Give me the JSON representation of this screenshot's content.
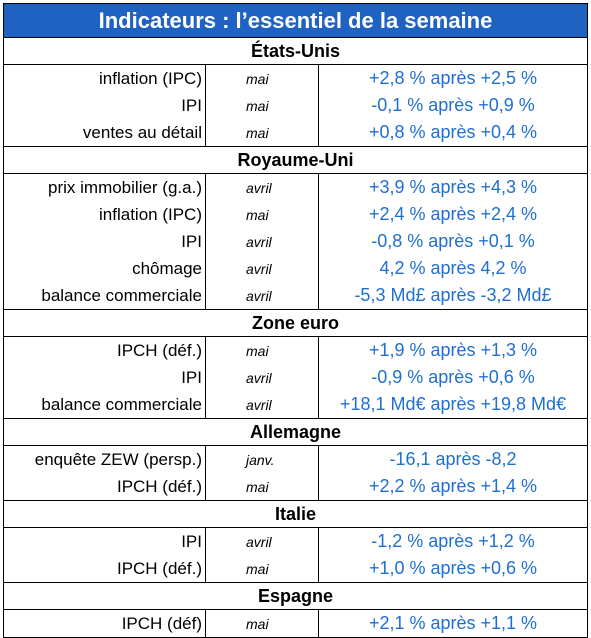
{
  "title": "Indicateurs : l’essentiel de la semaine",
  "colors": {
    "title_background": "#1f62c2",
    "title_text": "#ffffff",
    "value_text": "#1f6fd1",
    "border": "#000000"
  },
  "sections": [
    {
      "country": "États-Unis",
      "rows": [
        {
          "indicator": "inflation (IPC)",
          "period": "mai",
          "value": "+2,8 % après +2,5 %"
        },
        {
          "indicator": "IPI",
          "period": "mai",
          "value": "-0,1 % après +0,9 %"
        },
        {
          "indicator": "ventes au détail",
          "period": "mai",
          "value": "+0,8 % après +0,4 %"
        }
      ]
    },
    {
      "country": "Royaume-Uni",
      "rows": [
        {
          "indicator": "prix immobilier (g.a.)",
          "period": "avril",
          "value": "+3,9 % après +4,3 %"
        },
        {
          "indicator": "inflation (IPC)",
          "period": "mai",
          "value": "+2,4 % après +2,4 %"
        },
        {
          "indicator": "IPI",
          "period": "avril",
          "value": "-0,8 % après +0,1 %"
        },
        {
          "indicator": "chômage",
          "period": "avril",
          "value": "4,2 % après 4,2 %"
        },
        {
          "indicator": "balance commerciale",
          "period": "avril",
          "value": "-5,3 Md£ après -3,2 Md£"
        }
      ]
    },
    {
      "country": "Zone euro",
      "rows": [
        {
          "indicator": "IPCH (déf.)",
          "period": "mai",
          "value": "+1,9 % après +1,3 %"
        },
        {
          "indicator": "IPI",
          "period": "avril",
          "value": "-0,9 % après +0,6 %"
        },
        {
          "indicator": "balance commerciale",
          "period": "avril",
          "value": "+18,1 Md€ après +19,8 Md€"
        }
      ]
    },
    {
      "country": "Allemagne",
      "rows": [
        {
          "indicator": "enquête ZEW (persp.)",
          "period": "janv.",
          "value": "-16,1 après -8,2"
        },
        {
          "indicator": "IPCH (déf.)",
          "period": "mai",
          "value": "+2,2 % après +1,4 %"
        }
      ]
    },
    {
      "country": "Italie",
      "rows": [
        {
          "indicator": "IPI",
          "period": "avril",
          "value": "-1,2 % après +1,2 %"
        },
        {
          "indicator": "IPCH (déf.)",
          "period": "mai",
          "value": "+1,0 % après +0,6 %"
        }
      ]
    },
    {
      "country": "Espagne",
      "rows": [
        {
          "indicator": "IPCH (déf)",
          "period": "mai",
          "value": "+2,1 % après +1,1 %"
        }
      ]
    }
  ]
}
